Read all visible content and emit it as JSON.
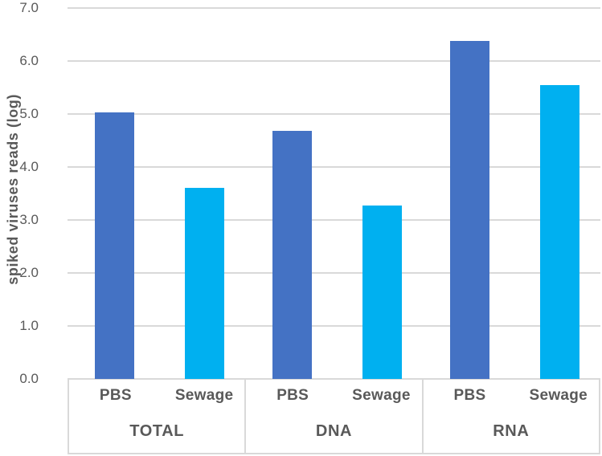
{
  "chart_data": {
    "type": "bar",
    "title": "",
    "xlabel": "",
    "ylabel": "spiked viruses reads (log)",
    "ylim": [
      0.0,
      7.0
    ],
    "ytick_step": 1.0,
    "ytick_labels": [
      "7.0",
      "6.0",
      "5.0",
      "4.0",
      "3.0",
      "2.0",
      "1.0",
      "0.0"
    ],
    "grid": true,
    "legend_position": "none",
    "groups": [
      "TOTAL",
      "DNA",
      "RNA"
    ],
    "sub_categories": [
      "PBS",
      "Sewage"
    ],
    "series": [
      {
        "name": "PBS",
        "color": "#4472C4",
        "values": [
          5.03,
          4.68,
          6.38
        ]
      },
      {
        "name": "Sewage",
        "color": "#00B0F0",
        "values": [
          3.6,
          3.27,
          5.55
        ]
      }
    ],
    "colors": {
      "gridline": "#d9d9d9",
      "text": "#595959",
      "background": "#ffffff"
    }
  }
}
